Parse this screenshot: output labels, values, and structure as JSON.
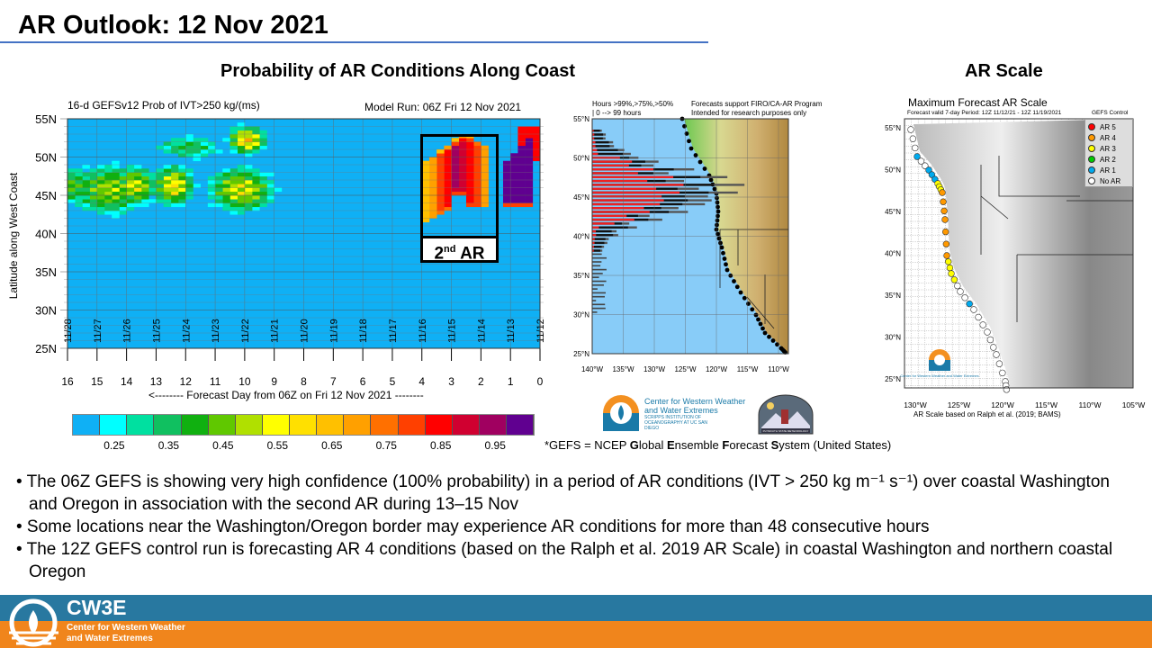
{
  "slide": {
    "title": "AR Outlook: 12 Nov 2021",
    "left_heading": "Probability of AR Conditions Along Coast",
    "right_heading": "AR Scale"
  },
  "prob_chart": {
    "title": "16-d GEFSv12 Prob of IVT>250 kg/(ms)",
    "model_run": "Model Run: 06Z Fri 12 Nov 2021",
    "ylabel": "Latitude along West Coast",
    "xlabel": "<-------- Forecast Day from 06Z on Fri 12 Nov 2021 --------",
    "y_ticks": [
      "55N",
      "50N",
      "45N",
      "40N",
      "35N",
      "30N",
      "25N"
    ],
    "x_ticks": [
      "16",
      "15",
      "14",
      "13",
      "12",
      "11",
      "10",
      "9",
      "8",
      "7",
      "6",
      "5",
      "4",
      "3",
      "2",
      "1",
      "0"
    ],
    "date_ticks": [
      "11/28",
      "11/27",
      "11/26",
      "11/25",
      "11/24",
      "11/23",
      "11/22",
      "11/21",
      "11/20",
      "11/19",
      "11/18",
      "11/17",
      "11/16",
      "11/15",
      "11/14",
      "11/13",
      "11/12"
    ],
    "annotation": {
      "ord": "2",
      "sup": "nd",
      "label": " AR"
    },
    "colorbar": {
      "colors": [
        "#0fb0f5",
        "#00ffff",
        "#00e0a0",
        "#10c060",
        "#10b010",
        "#60c800",
        "#b0e000",
        "#ffff00",
        "#ffe000",
        "#ffc000",
        "#ffa000",
        "#ff7000",
        "#ff4000",
        "#ff0000",
        "#d00030",
        "#a00060",
        "#600090"
      ],
      "labels": [
        "0.25",
        "0.35",
        "0.45",
        "0.55",
        "0.65",
        "0.75",
        "0.85",
        "0.95"
      ]
    }
  },
  "duration_map": {
    "header_left_1": "Hours >99%,>75%,>50%",
    "header_left_2": "| 0 --> 99 hours",
    "header_right_1": "Forecasts support FIRO/CA-AR Program",
    "header_right_2": "Intended for research purposes only",
    "lat_ticks": [
      "55°N",
      "50°N",
      "45°N",
      "40°N",
      "35°N",
      "30°N",
      "25°N"
    ],
    "lon_ticks": [
      "140°W",
      "135°W",
      "130°W",
      "125°W",
      "120°W",
      "115°W",
      "110°W"
    ]
  },
  "ar_scale_map": {
    "title": "Maximum Forecast AR Scale",
    "subtitle": "Forecast valid 7-day Period: 12Z 11/12/21 - 12Z 11/19/2021",
    "model": "GEFS Control",
    "legend": [
      {
        "label": "AR 5",
        "color": "#ff0000"
      },
      {
        "label": "AR 4",
        "color": "#ff9900"
      },
      {
        "label": "AR 3",
        "color": "#ffff00"
      },
      {
        "label": "AR 2",
        "color": "#00cc00"
      },
      {
        "label": "AR 1",
        "color": "#00aaee"
      },
      {
        "label": "No AR",
        "color": "#ffffff"
      }
    ],
    "lat_ticks": [
      "55°N",
      "50°N",
      "45°N",
      "40°N",
      "35°N",
      "30°N",
      "25°N"
    ],
    "lon_ticks": [
      "130°W",
      "125°W",
      "120°W",
      "115°W",
      "110°W",
      "105°W"
    ],
    "caption": "AR Scale based on Ralph et al. (2019; BAMS)",
    "logo_text": "Center for Western Weather and Water Extremes"
  },
  "logos": {
    "cw3e_line1": "Center for Western Weather",
    "cw3e_line2": "and Water Extremes",
    "cw3e_line3": "SCRIPPS INSTITUTION OF OCEANOGRAPHY AT UC SAN DIEGO",
    "psu": "PLYMOUTH STATE METEOROLOGY"
  },
  "footnote": {
    "pre": "*GEFS = NCEP ",
    "g": "G",
    "g2": "lobal ",
    "e": "E",
    "e2": "nsemble ",
    "f": "F",
    "f2": "orecast ",
    "s": "S",
    "s2": "ystem (United States)"
  },
  "bullets": [
    "• The 06Z GEFS is showing very high confidence (100% probability) in a period of AR conditions (IVT > 250 kg m⁻¹ s⁻¹) over coastal Washington and Oregon in association with the second AR during  13–15 Nov",
    "• Some locations near the Washington/Oregon border may experience AR conditions for more than 48 consecutive hours",
    "• The 12Z GEFS control run is forecasting AR 4 conditions (based on the Ralph  et al. 2019 AR Scale) in coastal Washington and northern coastal Oregon"
  ],
  "footer": {
    "brand": "CW3E",
    "line1": "Center for Western Weather",
    "line2": "and Water Extremes"
  }
}
